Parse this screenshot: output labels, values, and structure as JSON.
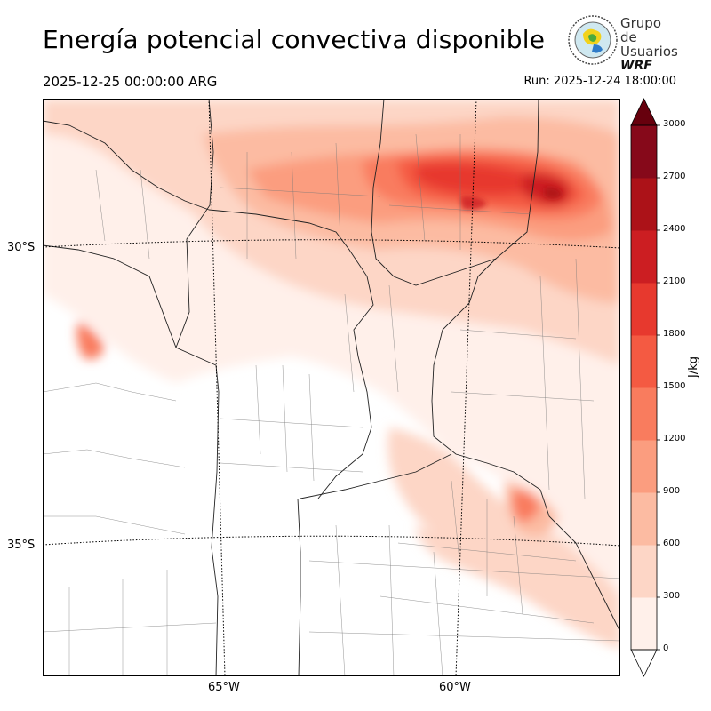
{
  "header": {
    "title": "Energía potencial convectiva disponible",
    "valid_time": "2025-12-25 00:00:00 ARG",
    "run_time": "Run: 2025-12-24 18:00:00"
  },
  "logo": {
    "line1": "Grupo de",
    "line2": "Usuarios",
    "line3": "WRF"
  },
  "map": {
    "lat_labels": [
      "30°S",
      "35°S"
    ],
    "lon_labels": [
      "65°W",
      "60°W"
    ]
  },
  "colorbar": {
    "unit": "J/kg",
    "ticks": [
      "0",
      "300",
      "600",
      "900",
      "1200",
      "1500",
      "1800",
      "2100",
      "2400",
      "2700",
      "3000"
    ],
    "colors": [
      "#fff0ea",
      "#fdd6c6",
      "#fcbba2",
      "#fb9d7f",
      "#f97c5e",
      "#f45a42",
      "#e7392e",
      "#cc1e22",
      "#ac1218",
      "#86091a"
    ],
    "over_color": "#67000d"
  }
}
